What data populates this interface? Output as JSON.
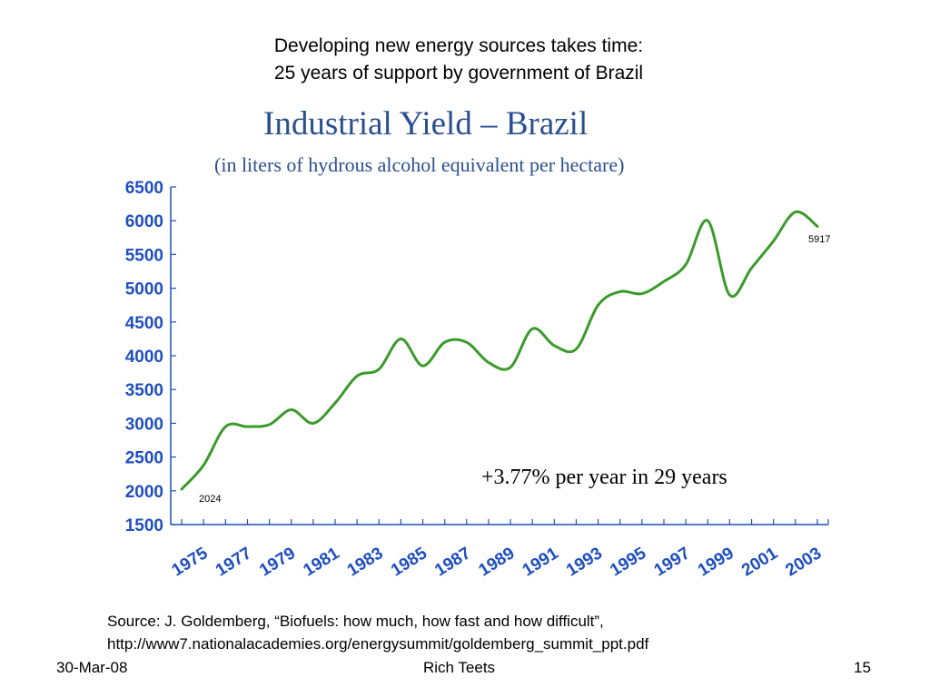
{
  "slide": {
    "heading_line1": "Developing new energy sources takes time:",
    "heading_line2": "25 years of support by government of Brazil",
    "source_line1": "Source:  J. Goldemberg, “Biofuels: how much, how fast and how difficult”,",
    "source_line2": "http://www7.nationalacademies.org/energysummit/goldemberg_summit_ppt.pdf",
    "footer_date": "30-Mar-08",
    "footer_author": "Rich Teets",
    "footer_page": "15"
  },
  "chart_data": {
    "type": "line",
    "title": "Industrial Yield – Brazil",
    "subtitle": "(in liters of hydrous alcohol equivalent per hectare)",
    "annotation": "+3.77% per year in 29 years",
    "start_label": "2024",
    "end_label": "5917",
    "ylim": [
      1500,
      6500
    ],
    "yticks": [
      1500,
      2000,
      2500,
      3000,
      3500,
      4000,
      4500,
      5000,
      5500,
      6000,
      6500
    ],
    "xlim": [
      1974.5,
      2004.5
    ],
    "xtick_labels": [
      "1975",
      "1977",
      "1979",
      "1981",
      "1983",
      "1985",
      "1987",
      "1989",
      "1991",
      "1993",
      "1995",
      "1997",
      "1999",
      "2001",
      "2003"
    ],
    "grid": false,
    "colors": {
      "line": "#3a9a2a",
      "title": "#2a4f8f",
      "axis": "#1f4fbf",
      "tick_labels": "#1f4fbf"
    },
    "series": [
      {
        "x": [
          1975,
          1976,
          1977,
          1978,
          1979,
          1980,
          1981,
          1982,
          1983,
          1984,
          1985,
          1986,
          1987,
          1988,
          1989,
          1990,
          1991,
          1992,
          1993,
          1994,
          1995,
          1996,
          1997,
          1998,
          1999,
          2000,
          2001,
          2002,
          2003,
          2004
        ],
        "y": [
          2024,
          2380,
          2950,
          2950,
          2980,
          3200,
          3000,
          3300,
          3700,
          3800,
          4250,
          3850,
          4200,
          4200,
          3900,
          3830,
          4400,
          4150,
          4100,
          4750,
          4950,
          4920,
          5100,
          5350,
          6000,
          4900,
          5300,
          5700,
          6130,
          5917
        ]
      }
    ]
  }
}
